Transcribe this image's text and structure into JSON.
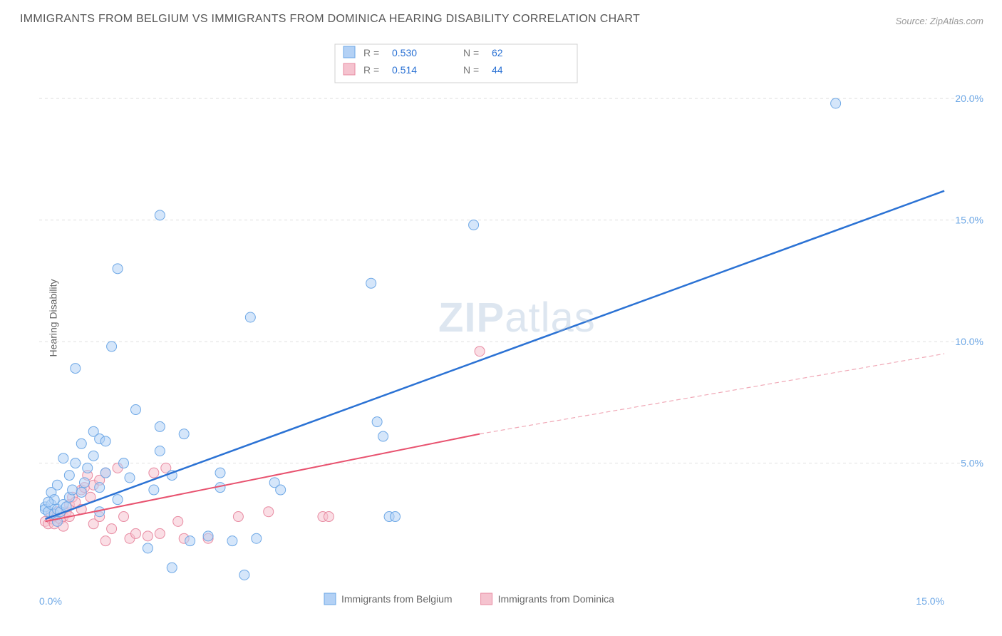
{
  "title": "IMMIGRANTS FROM BELGIUM VS IMMIGRANTS FROM DOMINICA HEARING DISABILITY CORRELATION CHART",
  "source": "Source: ZipAtlas.com",
  "ylabel": "Hearing Disability",
  "watermark_a": "ZIP",
  "watermark_b": "atlas",
  "chart": {
    "type": "scatter",
    "background_color": "#ffffff",
    "grid_color": "#e0e0e0",
    "text_color": "#666666",
    "accent_color": "#6ea8e6",
    "xlim": [
      0,
      15
    ],
    "ylim": [
      0,
      22
    ],
    "x_ticks": [
      {
        "v": 0,
        "label": "0.0%"
      },
      {
        "v": 15,
        "label": "15.0%"
      }
    ],
    "y_ticks": [
      {
        "v": 5,
        "label": "5.0%"
      },
      {
        "v": 10,
        "label": "10.0%"
      },
      {
        "v": 15,
        "label": "15.0%"
      },
      {
        "v": 20,
        "label": "20.0%"
      }
    ],
    "marker_radius": 7,
    "series": [
      {
        "name": "Immigrants from Belgium",
        "color_fill": "#b3d1f5",
        "color_stroke": "#6ea8e6",
        "line_color": "#2b72d4",
        "R": "0.530",
        "N": "62",
        "trend": {
          "x1": 0.1,
          "y1": 2.7,
          "x2": 15.0,
          "y2": 16.2
        },
        "points": [
          [
            0.1,
            3.2
          ],
          [
            0.1,
            3.1
          ],
          [
            0.15,
            3.0
          ],
          [
            0.2,
            3.3
          ],
          [
            0.2,
            3.8
          ],
          [
            0.25,
            2.9
          ],
          [
            0.25,
            3.5
          ],
          [
            0.3,
            3.1
          ],
          [
            0.3,
            4.1
          ],
          [
            0.35,
            3.0
          ],
          [
            0.4,
            3.3
          ],
          [
            0.4,
            5.2
          ],
          [
            0.45,
            3.2
          ],
          [
            0.5,
            3.6
          ],
          [
            0.5,
            4.5
          ],
          [
            0.55,
            3.9
          ],
          [
            0.6,
            5.0
          ],
          [
            0.6,
            8.9
          ],
          [
            0.7,
            3.8
          ],
          [
            0.7,
            5.8
          ],
          [
            0.75,
            4.2
          ],
          [
            0.8,
            4.8
          ],
          [
            0.9,
            5.3
          ],
          [
            0.9,
            6.3
          ],
          [
            1.0,
            3.0
          ],
          [
            1.0,
            4.0
          ],
          [
            1.0,
            6.0
          ],
          [
            1.1,
            4.6
          ],
          [
            1.1,
            5.9
          ],
          [
            1.2,
            9.8
          ],
          [
            1.3,
            13.0
          ],
          [
            1.3,
            3.5
          ],
          [
            1.4,
            5.0
          ],
          [
            1.5,
            4.4
          ],
          [
            1.6,
            7.2
          ],
          [
            1.8,
            1.5
          ],
          [
            1.9,
            3.9
          ],
          [
            2.0,
            5.5
          ],
          [
            2.0,
            6.5
          ],
          [
            2.0,
            15.2
          ],
          [
            2.2,
            4.5
          ],
          [
            2.2,
            0.7
          ],
          [
            2.4,
            6.2
          ],
          [
            2.5,
            1.8
          ],
          [
            2.8,
            2.0
          ],
          [
            3.0,
            4.0
          ],
          [
            3.0,
            4.6
          ],
          [
            3.2,
            1.8
          ],
          [
            3.4,
            0.4
          ],
          [
            3.5,
            11.0
          ],
          [
            3.6,
            1.9
          ],
          [
            3.9,
            4.2
          ],
          [
            4.0,
            3.9
          ],
          [
            5.5,
            12.4
          ],
          [
            5.6,
            6.7
          ],
          [
            5.7,
            6.1
          ],
          [
            5.8,
            2.8
          ],
          [
            5.9,
            2.8
          ],
          [
            7.2,
            14.8
          ],
          [
            13.2,
            19.8
          ],
          [
            0.3,
            2.6
          ],
          [
            0.15,
            3.4
          ]
        ]
      },
      {
        "name": "Immigrants from Dominica",
        "color_fill": "#f5c3cf",
        "color_stroke": "#e88ba2",
        "line_color": "#e8526f",
        "R": "0.514",
        "N": "44",
        "trend_solid": {
          "x1": 0.1,
          "y1": 2.6,
          "x2": 7.3,
          "y2": 6.2
        },
        "trend_dashed": {
          "x1": 7.3,
          "y1": 6.2,
          "x2": 15.0,
          "y2": 9.5
        },
        "points": [
          [
            0.1,
            2.6
          ],
          [
            0.15,
            2.5
          ],
          [
            0.2,
            2.7
          ],
          [
            0.2,
            2.9
          ],
          [
            0.25,
            2.5
          ],
          [
            0.25,
            2.8
          ],
          [
            0.3,
            2.6
          ],
          [
            0.3,
            3.0
          ],
          [
            0.35,
            2.7
          ],
          [
            0.4,
            2.8
          ],
          [
            0.4,
            2.4
          ],
          [
            0.45,
            3.0
          ],
          [
            0.5,
            2.8
          ],
          [
            0.5,
            3.3
          ],
          [
            0.55,
            3.6
          ],
          [
            0.6,
            3.4
          ],
          [
            0.7,
            3.9
          ],
          [
            0.7,
            3.1
          ],
          [
            0.75,
            4.0
          ],
          [
            0.8,
            4.5
          ],
          [
            0.85,
            3.6
          ],
          [
            0.9,
            4.1
          ],
          [
            0.9,
            2.5
          ],
          [
            1.0,
            2.8
          ],
          [
            1.0,
            4.3
          ],
          [
            1.1,
            4.6
          ],
          [
            1.1,
            1.8
          ],
          [
            1.2,
            2.3
          ],
          [
            1.3,
            4.8
          ],
          [
            1.4,
            2.8
          ],
          [
            1.5,
            1.9
          ],
          [
            1.6,
            2.1
          ],
          [
            1.8,
            2.0
          ],
          [
            1.9,
            4.6
          ],
          [
            2.0,
            2.1
          ],
          [
            2.1,
            4.8
          ],
          [
            2.3,
            2.6
          ],
          [
            2.4,
            1.9
          ],
          [
            2.8,
            1.9
          ],
          [
            3.3,
            2.8
          ],
          [
            3.8,
            3.0
          ],
          [
            4.7,
            2.8
          ],
          [
            4.8,
            2.8
          ],
          [
            7.3,
            9.6
          ]
        ]
      }
    ],
    "legend_title": {
      "r_label": "R =",
      "n_label": "N ="
    },
    "bottom_legend": [
      {
        "label": "Immigrants from Belgium",
        "color": "blue"
      },
      {
        "label": "Immigrants from Dominica",
        "color": "pink"
      }
    ]
  }
}
